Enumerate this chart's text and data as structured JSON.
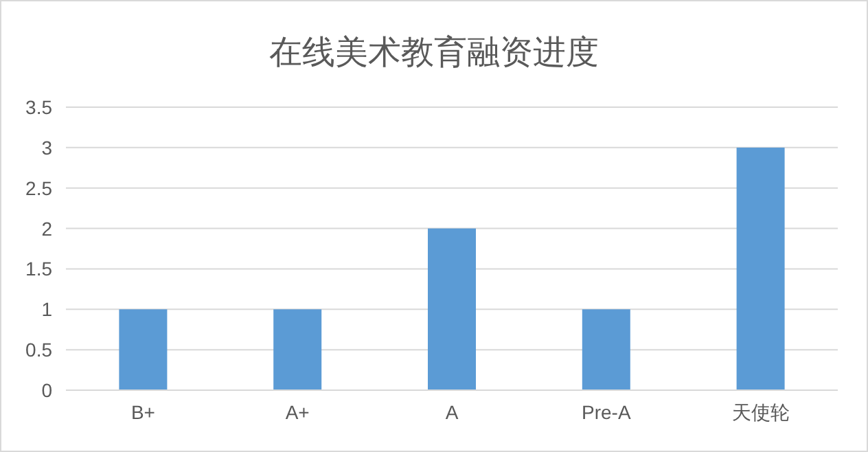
{
  "chart_data": {
    "type": "bar",
    "title": "在线美术教育融资进度",
    "categories": [
      "B+",
      "A+",
      "A",
      "Pre-A",
      "天使轮"
    ],
    "values": [
      1,
      1,
      2,
      1,
      3
    ],
    "color": "#5b9bd5",
    "ylim": [
      0,
      3.5
    ],
    "yticks": [
      0,
      0.5,
      1,
      1.5,
      2,
      2.5,
      3,
      3.5
    ],
    "grid": "y"
  }
}
